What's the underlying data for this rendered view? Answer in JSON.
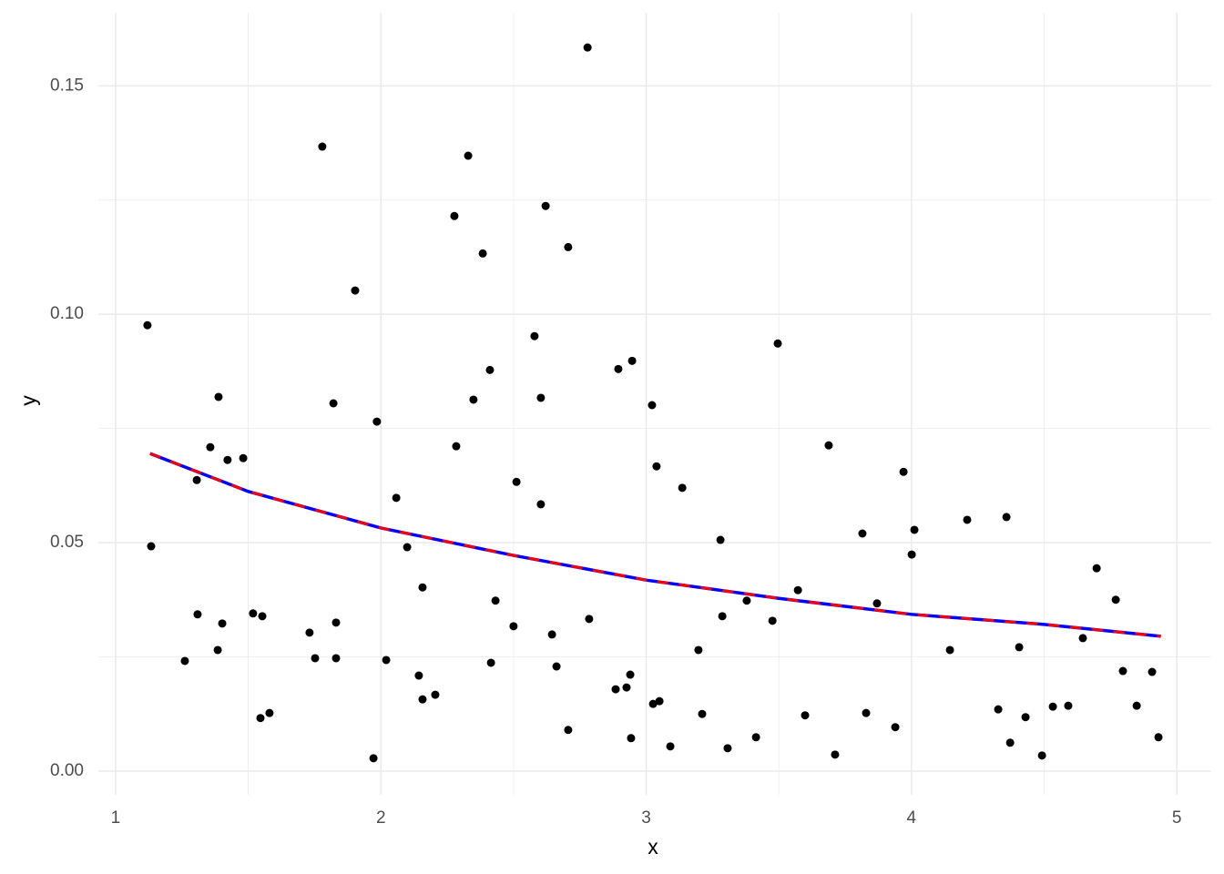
{
  "chart_data": {
    "type": "scatter",
    "x_label": "x",
    "y_label": "y",
    "xlim": [
      0.935,
      5.13
    ],
    "ylim": [
      -0.0052,
      0.166
    ],
    "xticks": [
      1,
      2,
      3,
      4,
      5
    ],
    "yticks": [
      {
        "value": 0,
        "label": "0.00"
      },
      0.05,
      {
        "value": 0.1,
        "label": "0.10"
      },
      0.15
    ],
    "x_minor_ticks": [
      1.5,
      2.5,
      3.5,
      4.5
    ],
    "y_minor_ticks": [
      0.025,
      0.075,
      0.125
    ],
    "grid": true,
    "series": [
      {
        "type": "scatter",
        "color": "#000000",
        "x": [
          1.12,
          1.134,
          1.261,
          1.306,
          1.309,
          1.357,
          1.385,
          1.388,
          1.402,
          1.422,
          1.481,
          1.518,
          1.546,
          1.553,
          1.58,
          1.731,
          1.752,
          1.779,
          1.821,
          1.831,
          1.831,
          1.903,
          1.972,
          1.985,
          2.02,
          2.058,
          2.099,
          2.143,
          2.157,
          2.157,
          2.205,
          2.277,
          2.284,
          2.329,
          2.349,
          2.384,
          2.411,
          2.415,
          2.432,
          2.5,
          2.511,
          2.579,
          2.603,
          2.603,
          2.621,
          2.645,
          2.662,
          2.706,
          2.706,
          2.779,
          2.785,
          2.885,
          2.895,
          2.926,
          2.94,
          2.947,
          2.943,
          3.022,
          3.026,
          3.039,
          3.05,
          3.091,
          3.136,
          3.197,
          3.211,
          3.28,
          3.287,
          3.307,
          3.379,
          3.414,
          3.476,
          3.496,
          3.572,
          3.599,
          3.688,
          3.712,
          3.815,
          3.829,
          3.87,
          3.939,
          3.97,
          4.001,
          4.011,
          4.145,
          4.21,
          4.327,
          4.358,
          4.372,
          4.406,
          4.43,
          4.492,
          4.533,
          4.591,
          4.646,
          4.698,
          4.77,
          4.797,
          4.849,
          4.907,
          4.931
        ],
        "values": [
          0.0976,
          0.0492,
          0.0241,
          0.0637,
          0.0343,
          0.0709,
          0.0265,
          0.0819,
          0.0323,
          0.0681,
          0.0685,
          0.0345,
          0.0116,
          0.0339,
          0.0127,
          0.0303,
          0.0247,
          0.1367,
          0.0805,
          0.0325,
          0.0247,
          0.1052,
          0.0028,
          0.0765,
          0.0243,
          0.0598,
          0.049,
          0.0209,
          0.0402,
          0.0157,
          0.0167,
          0.1215,
          0.0711,
          0.1347,
          0.0813,
          0.1133,
          0.0878,
          0.0237,
          0.0373,
          0.0317,
          0.0633,
          0.0952,
          0.0817,
          0.0584,
          0.1237,
          0.0299,
          0.0229,
          0.1147,
          0.009,
          0.1584,
          0.0333,
          0.0179,
          0.088,
          0.0183,
          0.0211,
          0.0898,
          0.0072,
          0.0801,
          0.0147,
          0.0667,
          0.0153,
          0.0054,
          0.062,
          0.0265,
          0.0125,
          0.0506,
          0.0339,
          0.005,
          0.0373,
          0.0074,
          0.0329,
          0.0936,
          0.0396,
          0.0122,
          0.0713,
          0.0036,
          0.052,
          0.0127,
          0.0367,
          0.0096,
          0.0655,
          0.0474,
          0.0528,
          0.0265,
          0.055,
          0.0135,
          0.0556,
          0.0062,
          0.0271,
          0.0118,
          0.0034,
          0.0141,
          0.0143,
          0.0291,
          0.0444,
          0.0375,
          0.0219,
          0.0143,
          0.0217,
          0.0074
        ]
      },
      {
        "type": "line",
        "color": "#0000ff",
        "dash": false,
        "x": [
          1.13,
          1.5,
          2,
          2.5,
          3,
          3.5,
          4,
          4.5,
          4.94
        ],
        "values": [
          0.0695,
          0.0612,
          0.0532,
          0.0472,
          0.0418,
          0.0378,
          0.0343,
          0.0321,
          0.0295
        ]
      },
      {
        "type": "line",
        "color": "#ff0000",
        "dash": true,
        "x": [
          1.13,
          1.5,
          2,
          2.5,
          3,
          3.5,
          4,
          4.5,
          4.94
        ],
        "values": [
          0.0695,
          0.0612,
          0.0532,
          0.0472,
          0.0418,
          0.0378,
          0.0343,
          0.0321,
          0.0295
        ]
      }
    ]
  }
}
